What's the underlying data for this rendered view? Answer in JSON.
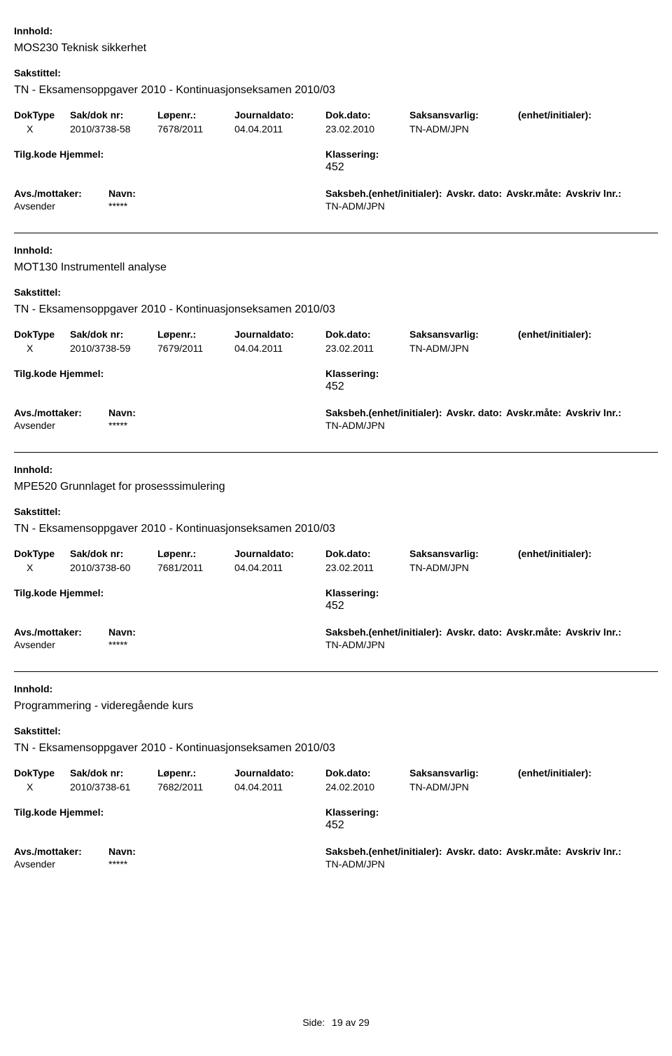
{
  "labels": {
    "innhold": "Innhold:",
    "sakstittel": "Sakstittel:",
    "doktype": "DokType",
    "sakdoknr": "Sak/dok nr:",
    "lopenr": "Løpenr.:",
    "journaldato": "Journaldato:",
    "dokdato": "Dok.dato:",
    "saksansvarlig": "Saksansvarlig:",
    "enhet": "(enhet/initialer):",
    "tilgkode": "Tilg.kode",
    "hjemmel": "Hjemmel:",
    "klassering": "Klassering:",
    "avsmottaker": "Avs./mottaker:",
    "navn": "Navn:",
    "saksbeh": "Saksbeh.(enhet/initialer):",
    "avskrdato": "Avskr. dato:",
    "avskrmate": "Avskr.måte:",
    "avskrivlnr": "Avskriv lnr.:",
    "avsender": "Avsender",
    "stars": "*****",
    "side": "Side:",
    "page": "19",
    "av": "av",
    "total": "29"
  },
  "records": [
    {
      "innhold": "MOS230 Teknisk sikkerhet",
      "sakstittel": "TN - Eksamensoppgaver 2010 - Kontinuasjonseksamen 2010/03",
      "doktype": "X",
      "sakdoknr": "2010/3738-58",
      "lopenr": "7678/2011",
      "journaldato": "04.04.2011",
      "dokdato": "23.02.2010",
      "saksansvarlig": "TN-ADM/JPN",
      "klassering": "452",
      "saksbeh": "TN-ADM/JPN"
    },
    {
      "innhold": "MOT130 Instrumentell analyse",
      "sakstittel": "TN - Eksamensoppgaver 2010 - Kontinuasjonseksamen 2010/03",
      "doktype": "X",
      "sakdoknr": "2010/3738-59",
      "lopenr": "7679/2011",
      "journaldato": "04.04.2011",
      "dokdato": "23.02.2011",
      "saksansvarlig": "TN-ADM/JPN",
      "klassering": "452",
      "saksbeh": "TN-ADM/JPN"
    },
    {
      "innhold": "MPE520 Grunnlaget for prosesssimulering",
      "sakstittel": "TN - Eksamensoppgaver 2010 - Kontinuasjonseksamen 2010/03",
      "doktype": "X",
      "sakdoknr": "2010/3738-60",
      "lopenr": "7681/2011",
      "journaldato": "04.04.2011",
      "dokdato": "23.02.2011",
      "saksansvarlig": "TN-ADM/JPN",
      "klassering": "452",
      "saksbeh": "TN-ADM/JPN"
    },
    {
      "innhold": "Programmering - videregående kurs",
      "sakstittel": "TN - Eksamensoppgaver 2010 - Kontinuasjonseksamen 2010/03",
      "doktype": "X",
      "sakdoknr": "2010/3738-61",
      "lopenr": "7682/2011",
      "journaldato": "04.04.2011",
      "dokdato": "24.02.2010",
      "saksansvarlig": "TN-ADM/JPN",
      "klassering": "452",
      "saksbeh": "TN-ADM/JPN"
    }
  ]
}
